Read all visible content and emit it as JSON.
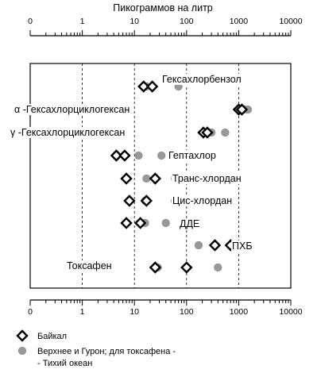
{
  "chart_data": {
    "type": "scatter",
    "title": "Пикограммов на литр",
    "xscale": "log",
    "xlim": [
      0.1,
      10000
    ],
    "x_ticks": [
      "0",
      "1",
      "10",
      "100",
      "1000",
      "10000"
    ],
    "grid": "dashed vertical lines at decades",
    "legend_position": "bottom-left",
    "categories": [
      "Гексахлорбензол",
      "α -Гексахлорциклогексан",
      "γ -Гексахлорциклогексан",
      "Гептахлор",
      "Транс-хлордан",
      "Цис-хлордан",
      "ДДЕ",
      "ПХБ",
      "Токсафен"
    ],
    "series": [
      {
        "name": "Байкал",
        "marker": "open-diamond",
        "color": "#000000",
        "points": [
          {
            "category": "Гексахлорбензол",
            "values": [
              15,
              22
            ]
          },
          {
            "category": "α -Гексахлорциклогексан",
            "values": [
              1000,
              1150
            ]
          },
          {
            "category": "γ -Гексахлорциклогексан",
            "values": [
              210,
              250
            ]
          },
          {
            "category": "Гептахлор",
            "values": [
              4.5,
              6.5
            ]
          },
          {
            "category": "Транс-хлордан",
            "values": [
              7,
              25
            ]
          },
          {
            "category": "Цис-хлордан",
            "values": [
              8,
              17
            ]
          },
          {
            "category": "ДДЕ",
            "values": [
              7,
              13
            ]
          },
          {
            "category": "ПХБ",
            "values": [
              350,
              700
            ]
          },
          {
            "category": "Токсафен",
            "values": [
              25,
              100
            ]
          }
        ]
      },
      {
        "name": "Верхнее и Гурон; для токсафена - - Тихий океан",
        "legend_lines": [
          "Верхнее и Гурон; для токсафена -",
          "- Тихий океан"
        ],
        "marker": "gray-circle",
        "color": "#999999",
        "points": [
          {
            "category": "Гексахлорбензол",
            "values": [
              17,
              70
            ]
          },
          {
            "category": "α -Гексахлорциклогексан",
            "values": [
              1300,
              1500
            ]
          },
          {
            "category": "γ -Гексахлорциклогексан",
            "values": [
              300,
              550
            ]
          },
          {
            "category": "Гептахлор",
            "values": [
              12,
              33
            ]
          },
          {
            "category": "Транс-хлордан",
            "values": [
              17,
              60
            ]
          },
          {
            "category": "Цис-хлордан",
            "values": [
              16,
              60
            ]
          },
          {
            "category": "ДДЕ",
            "values": [
              16,
              40
            ]
          },
          {
            "category": "ПХБ",
            "values": [
              170,
              850
            ]
          },
          {
            "category": "Токсафен",
            "values": [
              28,
              400
            ]
          }
        ]
      }
    ]
  }
}
